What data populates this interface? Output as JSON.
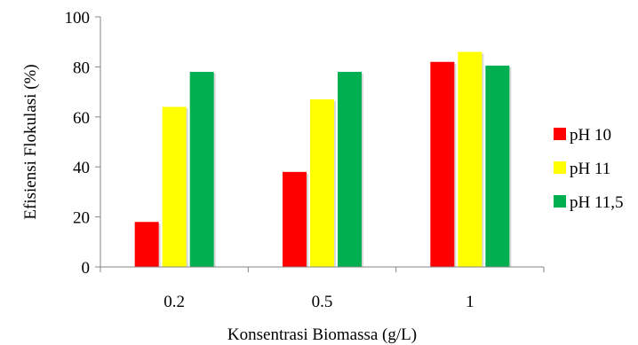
{
  "chart_data": {
    "type": "bar",
    "title": "",
    "xlabel": "Konsentrasi Biomassa (g/L)",
    "ylabel": "Efisiensi Flokulasi (%)",
    "categories": [
      "0.2",
      "0.5",
      "1"
    ],
    "ylim": [
      0,
      100
    ],
    "yticks": [
      "0",
      "20",
      "40",
      "60",
      "80",
      "100"
    ],
    "grid": false,
    "legend_position": "right",
    "series": [
      {
        "name": "pH 10",
        "color": "#ff0000",
        "values": [
          18,
          38,
          82
        ]
      },
      {
        "name": "pH 11",
        "color": "#ffff00",
        "values": [
          64,
          67,
          86
        ]
      },
      {
        "name": "pH 11,5",
        "color": "#00b050",
        "values": [
          78,
          78,
          80.5
        ]
      }
    ]
  }
}
